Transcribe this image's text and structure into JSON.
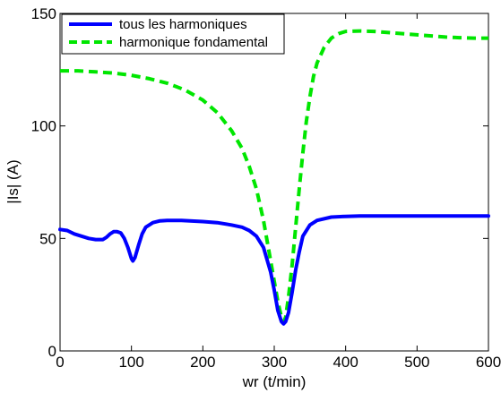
{
  "chart_data": {
    "type": "line",
    "xlabel": "wr (t/min)",
    "ylabel": "|Is| (A)",
    "xlim": [
      0,
      600
    ],
    "ylim": [
      0,
      150
    ],
    "x_ticks": [
      "0",
      "100",
      "200",
      "300",
      "400",
      "500",
      "600"
    ],
    "y_ticks": [
      "0",
      "50",
      "100",
      "150"
    ],
    "grid": false,
    "legend_position": "top-left",
    "series": [
      {
        "name": "tous les harmoniques",
        "color": "#0000ff",
        "style": "solid",
        "points": [
          [
            0,
            54
          ],
          [
            10,
            53.5
          ],
          [
            20,
            52
          ],
          [
            30,
            51
          ],
          [
            40,
            50
          ],
          [
            50,
            49.5
          ],
          [
            60,
            49.5
          ],
          [
            65,
            50.5
          ],
          [
            70,
            52
          ],
          [
            75,
            53
          ],
          [
            80,
            53
          ],
          [
            85,
            52.5
          ],
          [
            90,
            50
          ],
          [
            95,
            46
          ],
          [
            100,
            41
          ],
          [
            102,
            40
          ],
          [
            105,
            41.5
          ],
          [
            110,
            47
          ],
          [
            115,
            52
          ],
          [
            120,
            55
          ],
          [
            130,
            57
          ],
          [
            140,
            57.8
          ],
          [
            150,
            58
          ],
          [
            170,
            58
          ],
          [
            200,
            57.5
          ],
          [
            220,
            57
          ],
          [
            240,
            56
          ],
          [
            255,
            55
          ],
          [
            265,
            53.5
          ],
          [
            275,
            51
          ],
          [
            285,
            46
          ],
          [
            295,
            35
          ],
          [
            300,
            27
          ],
          [
            305,
            18
          ],
          [
            310,
            13
          ],
          [
            313,
            12
          ],
          [
            316,
            13
          ],
          [
            320,
            17
          ],
          [
            325,
            26
          ],
          [
            330,
            36
          ],
          [
            335,
            44
          ],
          [
            340,
            51
          ],
          [
            350,
            56
          ],
          [
            360,
            58
          ],
          [
            380,
            59.5
          ],
          [
            400,
            59.8
          ],
          [
            420,
            60
          ],
          [
            500,
            60
          ],
          [
            600,
            60
          ]
        ]
      },
      {
        "name": "harmonique fondamental",
        "color": "#00e600",
        "style": "dashed",
        "points": [
          [
            0,
            124.5
          ],
          [
            25,
            124.5
          ],
          [
            50,
            124
          ],
          [
            75,
            123.5
          ],
          [
            100,
            122.5
          ],
          [
            125,
            121
          ],
          [
            150,
            119
          ],
          [
            175,
            116
          ],
          [
            200,
            111.5
          ],
          [
            220,
            106
          ],
          [
            240,
            98
          ],
          [
            255,
            90
          ],
          [
            265,
            82
          ],
          [
            275,
            72
          ],
          [
            285,
            58
          ],
          [
            295,
            40
          ],
          [
            300,
            31
          ],
          [
            305,
            22
          ],
          [
            310,
            15
          ],
          [
            313,
            13
          ],
          [
            316,
            15
          ],
          [
            320,
            24
          ],
          [
            325,
            38
          ],
          [
            330,
            55
          ],
          [
            335,
            72
          ],
          [
            340,
            88
          ],
          [
            345,
            102
          ],
          [
            350,
            113
          ],
          [
            355,
            122
          ],
          [
            360,
            128
          ],
          [
            370,
            135
          ],
          [
            380,
            139
          ],
          [
            390,
            141
          ],
          [
            400,
            142
          ],
          [
            420,
            142.2
          ],
          [
            440,
            142
          ],
          [
            460,
            141.5
          ],
          [
            480,
            141
          ],
          [
            500,
            140.5
          ],
          [
            520,
            140
          ],
          [
            540,
            139.5
          ],
          [
            560,
            139.2
          ],
          [
            580,
            139
          ],
          [
            600,
            139
          ]
        ]
      }
    ]
  }
}
